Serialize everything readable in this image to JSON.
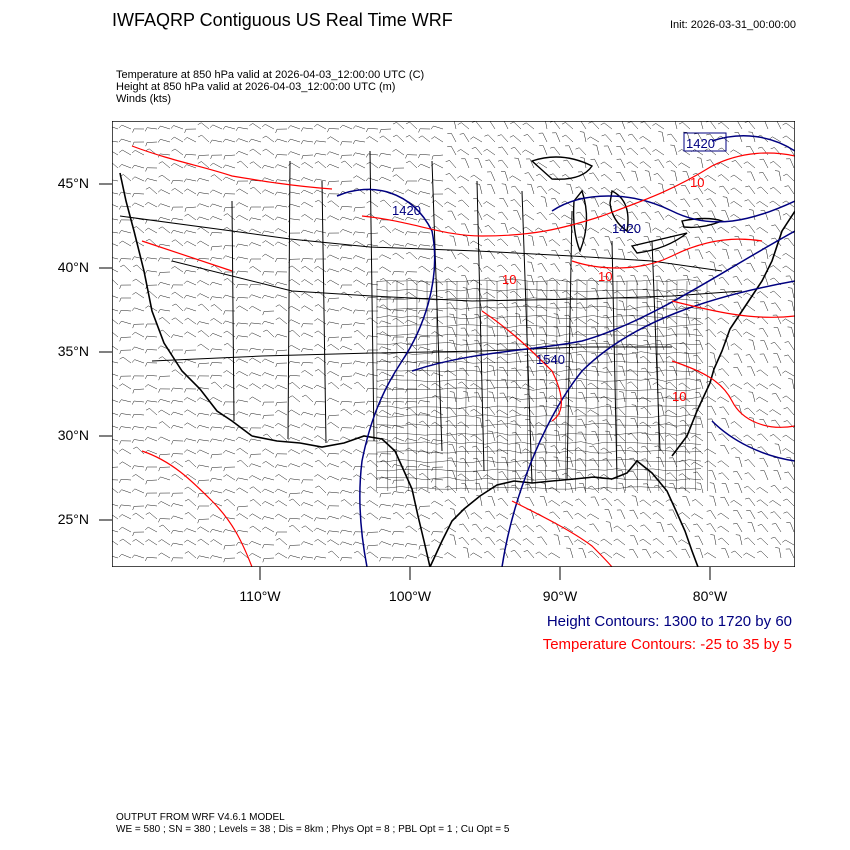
{
  "header": {
    "title": "IWFAQRP Contiguous US Real Time WRF",
    "init": "Init: 2026-03-31_00:00:00"
  },
  "subtitles": {
    "line1": "Temperature at 850 hPa valid at 2026-04-03_12:00:00 UTC   (C)",
    "line2": "Height at 850 hPa valid at 2026-04-03_12:00:00 UTC   (m)",
    "line3": "Winds   (kts)"
  },
  "axes": {
    "lat_labels": [
      "45°N",
      "40°N",
      "35°N",
      "30°N",
      "25°N"
    ],
    "lon_labels": [
      "110°W",
      "100°W",
      "90°W",
      "80°W"
    ]
  },
  "contour_labels": {
    "height": [
      "1420",
      "1420",
      "1420",
      "1540"
    ],
    "temp": [
      "10",
      "10",
      "10",
      "10"
    ]
  },
  "legend": {
    "height": "Height Contours: 1300 to 1720 by 60",
    "temp": "Temperature Contours: -25 to 35 by 5"
  },
  "footer": {
    "line1": "OUTPUT FROM WRF V4.6.1 MODEL",
    "line2": "WE = 580 ; SN = 380 ; Levels = 38 ; Dis = 8km ; Phys Opt = 8 ; PBL Opt = 1 ; Cu Opt = 5"
  },
  "colors": {
    "height_contour": "#000080",
    "temp_contour": "#ff0000",
    "boundary": "#000000",
    "wind_barb": "#000000"
  }
}
